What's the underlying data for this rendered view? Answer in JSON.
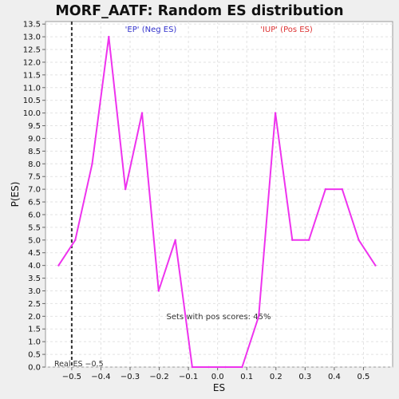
{
  "chart_data": {
    "type": "line",
    "title": "MORF_AATF: Random ES distribution",
    "xlabel": "ES",
    "ylabel": "P(ES)",
    "xlim": [
      -0.59,
      0.6
    ],
    "ylim": [
      0,
      13.6
    ],
    "x_ticks": [
      -0.5,
      -0.4,
      -0.3,
      -0.2,
      -0.1,
      0.0,
      0.1,
      0.2,
      0.3,
      0.4,
      0.5
    ],
    "x_tick_labels": [
      "−0.5",
      "−0.4",
      "−0.3",
      "−0.2",
      "−0.1",
      "0.0",
      "0.1",
      "0.2",
      "0.3",
      "0.4",
      "0.5"
    ],
    "y_ticks": [
      0.0,
      0.5,
      1.0,
      1.5,
      2.0,
      2.5,
      3.0,
      3.5,
      4.0,
      4.5,
      5.0,
      5.5,
      6.0,
      6.5,
      7.0,
      7.5,
      8.0,
      8.5,
      9.0,
      9.5,
      10.0,
      10.5,
      11.0,
      11.5,
      12.0,
      12.5,
      13.0,
      13.5
    ],
    "y_tick_labels": [
      "0.0",
      "0.5",
      "1.0",
      "1.5",
      "2.0",
      "2.5",
      "3.0",
      "3.5",
      "4.0",
      "4.5",
      "5.0",
      "5.5",
      "6.0",
      "6.5",
      "7.0",
      "7.5",
      "8.0",
      "8.5",
      "9.0",
      "9.5",
      "10.0",
      "10.5",
      "11.0",
      "11.5",
      "12.0",
      "12.5",
      "13.0",
      "13.5"
    ],
    "grid": true,
    "series": [
      {
        "color": "#ee33ee",
        "x": [
          -0.545,
          -0.488,
          -0.43,
          -0.373,
          -0.316,
          -0.259,
          -0.202,
          -0.145,
          -0.087,
          -0.03,
          0.027,
          0.084,
          0.141,
          0.198,
          0.256,
          0.313,
          0.37,
          0.427,
          0.484,
          0.541
        ],
        "y": [
          4.0,
          5.0,
          8.0,
          13.0,
          7.0,
          10.0,
          3.0,
          5.0,
          0.0,
          0.0,
          0.0,
          0.0,
          2.0,
          10.0,
          5.0,
          5.0,
          7.0,
          7.0,
          5.0,
          4.0
        ]
      }
    ],
    "real_es": {
      "value": -0.5,
      "label": "Real ES −0.5"
    },
    "annotations": {
      "neg_label": "'EP' (Neg ES)",
      "pos_label": "'IUP' (Pos ES)",
      "sets_label": "Sets with pos scores: 45%"
    },
    "colors": {
      "line": "#ee33ee",
      "neg_label": "#3333cc",
      "pos_label": "#dd3333",
      "real_es_line": "#333333"
    }
  }
}
